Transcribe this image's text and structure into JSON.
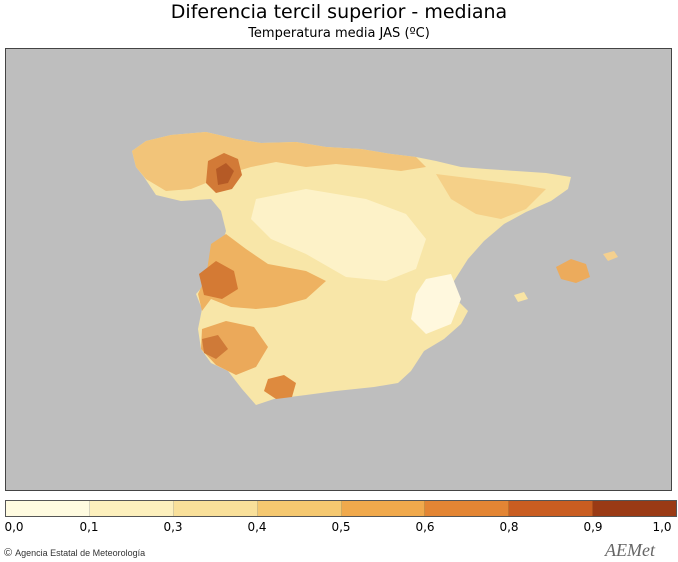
{
  "title": "Diferencia tercil superior - mediana",
  "subtitle": "Temperatura media JAS (ºC)",
  "map": {
    "background_color": "#bebebe",
    "region": "Iberian Peninsula and Balearic Islands"
  },
  "legend": {
    "ticks": [
      "0,0",
      "0,1",
      "0,3",
      "0,4",
      "0,5",
      "0,6",
      "0,8",
      "0,9",
      "1,0"
    ],
    "colors": [
      "#fffbe0",
      "#fdf0bd",
      "#f9e09a",
      "#f5c870",
      "#f0a94c",
      "#e38534",
      "#c95d21",
      "#9a3a15"
    ]
  },
  "credit": {
    "copyright": "©",
    "text": "Agencia Estatal de Meteorología"
  },
  "logo": "AEMet"
}
